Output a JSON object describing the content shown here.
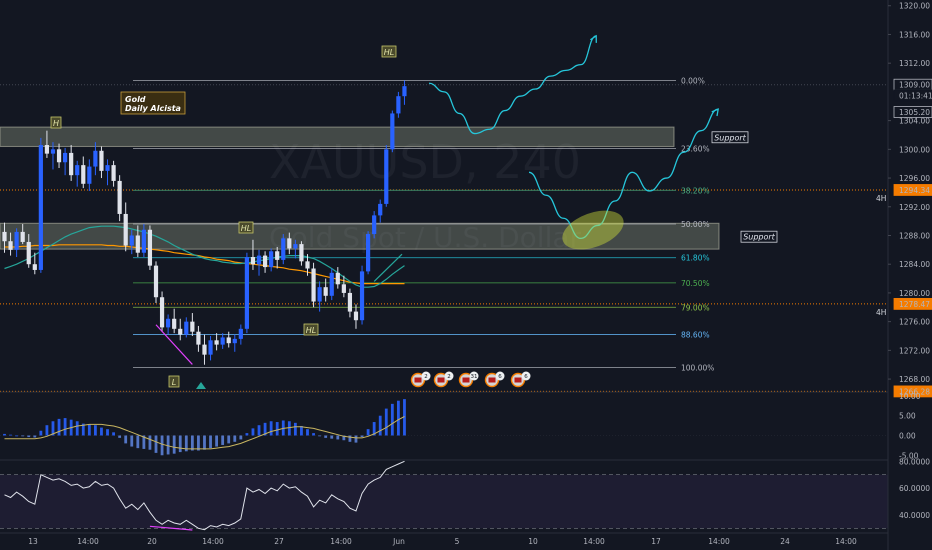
{
  "chart_data": {
    "type": "candlestick",
    "watermark": {
      "symbol": "XAUUSD, 240",
      "description": "Gold Spot / U.S. Dollar"
    },
    "price_axis": {
      "ticks": [
        "1320.00",
        "1316.00",
        "1312.00",
        "1304.00",
        "1300.00",
        "1296.00",
        "1292.00",
        "1288.00",
        "1284.00",
        "1280.00",
        "1276.00",
        "1272.00",
        "1268.00"
      ],
      "tick_values": [
        1320,
        1316,
        1312,
        1304,
        1300,
        1296,
        1292,
        1288,
        1284,
        1280,
        1276,
        1272,
        1268
      ],
      "ylim": [
        1266.2,
        1320.8
      ]
    },
    "price_tags": [
      {
        "text": "1309.00",
        "value": 1309.0,
        "color": "#ffffff",
        "bg": "#131722",
        "border": "#b2b5be"
      },
      {
        "text": "01:13:41",
        "value": 1307.5,
        "color": "#d1d4dc",
        "bg": "#131722",
        "border": "#131722"
      },
      {
        "text": "1305.20",
        "value": 1305.2,
        "color": "#ffffff",
        "bg": "#131722",
        "border": "#b2b5be"
      },
      {
        "text": "1294.34",
        "value": 1294.34,
        "color": "#131722",
        "bg": "#f57c00",
        "border": "#f57c00"
      },
      {
        "text": "1278.47",
        "value": 1278.47,
        "color": "#131722",
        "bg": "#f57c00",
        "border": "#f57c00"
      },
      {
        "text": "1266.28",
        "value": 1266.28,
        "color": "#131722",
        "bg": "#f57c00",
        "border": "#f57c00"
      }
    ],
    "timeframe_labels": [
      {
        "text": "4H",
        "value": 1294.34
      },
      {
        "text": "4H",
        "value": 1278.47
      }
    ],
    "time_axis": [
      "13",
      "14:00",
      "20",
      "14:00",
      "27",
      "14:00",
      "Jun",
      "5",
      "10",
      "14:00",
      "17",
      "14:00",
      "24",
      "14:00"
    ],
    "fib_levels": [
      {
        "label": "0.00%",
        "value": 1309.6,
        "color": "#b2b5be"
      },
      {
        "label": "23.60%",
        "value": 1300.1,
        "color": "#b2b5be"
      },
      {
        "label": "38.20%",
        "value": 1294.3,
        "color": "#4caf80"
      },
      {
        "label": "50.00%",
        "value": 1289.6,
        "color": "#b2b5be"
      },
      {
        "label": "61.80%",
        "value": 1284.9,
        "color": "#26c6da"
      },
      {
        "label": "70.50%",
        "value": 1281.4,
        "color": "#4caf50"
      },
      {
        "label": "79.00%",
        "value": 1278.0,
        "color": "#8bc34a"
      },
      {
        "label": "88.60%",
        "value": 1274.2,
        "color": "#64b5f6"
      },
      {
        "label": "100.00%",
        "value": 1269.6,
        "color": "#b2b5be"
      }
    ],
    "support_zones": [
      {
        "label": "Support",
        "top": 1303.1,
        "bottom": 1300.4
      },
      {
        "label": "Support",
        "top": 1289.7,
        "bottom": 1286.1
      }
    ],
    "annotations": [
      {
        "text": "HL",
        "type": "box"
      },
      {
        "text": "H",
        "type": "box"
      },
      {
        "text": "HL",
        "type": "box"
      },
      {
        "text": "HL",
        "type": "box"
      },
      {
        "text": "L",
        "type": "box"
      }
    ],
    "title_box": {
      "line1": "Gold",
      "line2": "Daily Alcista"
    },
    "event_badges": [
      "2",
      "2",
      "31",
      "6",
      "6"
    ],
    "macd": {
      "ticks": [
        "10.00",
        "5.00",
        "0.00",
        "-5.00"
      ],
      "tick_values": [
        10,
        5,
        0,
        -5
      ],
      "ylim": [
        -6.2,
        11.0
      ]
    },
    "rsi": {
      "ticks": [
        "80.0000",
        "60.0000",
        "40.0000"
      ],
      "tick_values": [
        80,
        60,
        40
      ],
      "ylim": [
        26.5,
        81.0
      ],
      "bands": [
        70,
        30
      ]
    },
    "ohlc": [
      [
        1288.5,
        1289.8,
        1285.6,
        1287.2
      ],
      [
        1287.2,
        1288.4,
        1285.2,
        1286.0
      ],
      [
        1286.0,
        1289.0,
        1285.0,
        1288.5
      ],
      [
        1288.5,
        1289.6,
        1286.8,
        1287.1
      ],
      [
        1287.1,
        1288.2,
        1283.5,
        1284.0
      ],
      [
        1284.0,
        1285.6,
        1282.6,
        1283.2
      ],
      [
        1283.2,
        1301.6,
        1282.8,
        1300.6
      ],
      [
        1300.6,
        1302.6,
        1298.8,
        1299.4
      ],
      [
        1299.4,
        1301.0,
        1297.2,
        1300.0
      ],
      [
        1300.0,
        1300.8,
        1297.4,
        1298.2
      ],
      [
        1298.2,
        1300.2,
        1296.4,
        1299.5
      ],
      [
        1299.5,
        1300.6,
        1295.6,
        1296.4
      ],
      [
        1296.4,
        1298.4,
        1294.8,
        1297.8
      ],
      [
        1297.8,
        1299.0,
        1294.6,
        1295.2
      ],
      [
        1295.2,
        1298.6,
        1294.2,
        1297.6
      ],
      [
        1297.6,
        1301.0,
        1296.4,
        1299.8
      ],
      [
        1299.8,
        1300.4,
        1296.0,
        1297.0
      ],
      [
        1297.0,
        1298.6,
        1295.0,
        1297.8
      ],
      [
        1297.8,
        1298.4,
        1294.8,
        1295.6
      ],
      [
        1295.6,
        1296.4,
        1290.0,
        1291.0
      ],
      [
        1291.0,
        1292.6,
        1285.8,
        1286.6
      ],
      [
        1286.6,
        1288.8,
        1285.4,
        1288.0
      ],
      [
        1288.0,
        1289.4,
        1285.0,
        1285.6
      ],
      [
        1285.6,
        1289.6,
        1285.0,
        1288.8
      ],
      [
        1288.8,
        1289.4,
        1283.2,
        1283.8
      ],
      [
        1283.8,
        1284.4,
        1278.6,
        1279.4
      ],
      [
        1279.4,
        1280.2,
        1274.6,
        1275.2
      ],
      [
        1275.2,
        1277.0,
        1274.2,
        1276.4
      ],
      [
        1276.4,
        1277.8,
        1274.4,
        1275.0
      ],
      [
        1275.0,
        1276.4,
        1273.4,
        1274.2
      ],
      [
        1274.2,
        1276.6,
        1273.8,
        1276.0
      ],
      [
        1276.0,
        1277.2,
        1274.0,
        1274.6
      ],
      [
        1274.6,
        1275.4,
        1271.8,
        1272.8
      ],
      [
        1272.8,
        1274.2,
        1270.0,
        1271.4
      ],
      [
        1271.4,
        1274.0,
        1270.6,
        1273.4
      ],
      [
        1273.4,
        1274.4,
        1272.0,
        1272.8
      ],
      [
        1272.8,
        1274.4,
        1272.2,
        1273.8
      ],
      [
        1273.8,
        1274.6,
        1272.4,
        1273.0
      ],
      [
        1273.0,
        1274.2,
        1271.8,
        1273.6
      ],
      [
        1273.6,
        1275.6,
        1272.8,
        1275.0
      ],
      [
        1275.0,
        1285.6,
        1274.4,
        1285.0
      ],
      [
        1285.0,
        1287.4,
        1283.2,
        1284.0
      ],
      [
        1284.0,
        1286.0,
        1282.4,
        1285.2
      ],
      [
        1285.2,
        1285.8,
        1282.8,
        1283.6
      ],
      [
        1283.6,
        1286.2,
        1283.0,
        1285.8
      ],
      [
        1285.8,
        1286.4,
        1283.4,
        1284.6
      ],
      [
        1284.6,
        1288.2,
        1284.0,
        1287.6
      ],
      [
        1287.6,
        1288.4,
        1285.4,
        1286.2
      ],
      [
        1286.2,
        1287.4,
        1284.8,
        1286.8
      ],
      [
        1286.8,
        1287.2,
        1283.8,
        1284.4
      ],
      [
        1284.4,
        1285.4,
        1282.4,
        1283.4
      ],
      [
        1283.4,
        1284.2,
        1278.0,
        1278.8
      ],
      [
        1278.8,
        1281.6,
        1277.4,
        1280.8
      ],
      [
        1280.8,
        1282.0,
        1278.8,
        1279.6
      ],
      [
        1279.6,
        1283.4,
        1279.0,
        1282.8
      ],
      [
        1282.8,
        1283.6,
        1280.6,
        1281.2
      ],
      [
        1281.2,
        1282.4,
        1279.4,
        1280.0
      ],
      [
        1280.0,
        1280.6,
        1276.6,
        1277.4
      ],
      [
        1277.4,
        1278.4,
        1275.0,
        1276.2
      ],
      [
        1276.2,
        1283.8,
        1275.6,
        1283.0
      ],
      [
        1283.0,
        1288.6,
        1282.6,
        1288.2
      ],
      [
        1288.2,
        1291.4,
        1287.6,
        1290.8
      ],
      [
        1290.8,
        1293.0,
        1289.8,
        1292.4
      ],
      [
        1292.4,
        1300.6,
        1292.0,
        1300.0
      ],
      [
        1300.0,
        1305.4,
        1299.6,
        1305.0
      ],
      [
        1305.0,
        1308.0,
        1304.4,
        1307.4
      ],
      [
        1307.4,
        1309.6,
        1306.2,
        1308.8
      ]
    ],
    "ma_teal": [
      1283.4,
      1283.7,
      1284.0,
      1284.4,
      1284.8,
      1285.3,
      1285.8,
      1286.3,
      1286.8,
      1287.3,
      1287.8,
      1288.2,
      1288.5,
      1288.8,
      1289.1,
      1289.2,
      1289.3,
      1289.3,
      1289.3,
      1289.2,
      1289.1,
      1288.9,
      1288.7,
      1288.5,
      1288.2,
      1287.9,
      1287.5,
      1287.1,
      1286.6,
      1286.2,
      1285.8,
      1285.4,
      1285.1,
      1284.8,
      1284.6,
      1284.5,
      1284.3,
      1284.2,
      1284.1,
      1284.1,
      1284.2,
      1284.3,
      1284.5,
      1284.6,
      1284.8,
      1285.0,
      1285.1,
      1285.2,
      1285.2,
      1285.2,
      1285.0,
      1284.8,
      1284.4,
      1283.9,
      1283.4,
      1282.8,
      1282.2,
      1281.6,
      1281.1,
      1280.8,
      1280.8,
      1280.9,
      1281.3,
      1281.9,
      1282.6,
      1283.2,
      1283.8
    ],
    "ma_orange": [
      1286.4,
      1286.4,
      1286.4,
      1286.5,
      1286.5,
      1286.6,
      1286.6,
      1286.6,
      1286.6,
      1286.7,
      1286.7,
      1286.7,
      1286.7,
      1286.7,
      1286.7,
      1286.7,
      1286.7,
      1286.6,
      1286.6,
      1286.5,
      1286.5,
      1286.4,
      1286.3,
      1286.2,
      1286.1,
      1286.0,
      1285.9,
      1285.8,
      1285.6,
      1285.5,
      1285.4,
      1285.3,
      1285.2,
      1285.0,
      1284.9,
      1284.7,
      1284.6,
      1284.5,
      1284.3,
      1284.2,
      1284.1,
      1284.0,
      1283.9,
      1283.8,
      1283.7,
      1283.6,
      1283.5,
      1283.3,
      1283.2,
      1283.1,
      1282.9,
      1282.7,
      1282.5,
      1282.3,
      1282.1,
      1281.9,
      1281.7,
      1281.5,
      1281.4,
      1281.3,
      1281.3,
      1281.3,
      1281.3,
      1281.3,
      1281.3,
      1281.3,
      1281.3
    ],
    "macd_hist": [
      0.4,
      0.2,
      0.0,
      -0.2,
      -0.4,
      -0.5,
      1.2,
      2.6,
      3.6,
      4.2,
      4.4,
      4.0,
      3.6,
      3.0,
      2.8,
      2.6,
      2.0,
      1.6,
      0.8,
      -0.6,
      -2.0,
      -2.8,
      -3.2,
      -3.4,
      -3.6,
      -4.4,
      -5.0,
      -4.8,
      -4.6,
      -4.2,
      -4.0,
      -3.8,
      -3.8,
      -3.6,
      -3.2,
      -2.8,
      -2.4,
      -2.0,
      -1.6,
      -1.0,
      0.6,
      1.8,
      2.6,
      3.2,
      3.6,
      3.4,
      3.8,
      3.6,
      3.2,
      2.4,
      1.6,
      0.6,
      -0.2,
      -0.6,
      -0.8,
      -1.0,
      -1.2,
      -1.6,
      -1.8,
      -0.4,
      1.6,
      3.4,
      5.0,
      6.8,
      8.0,
      8.8,
      9.2
    ],
    "macd_signal": [
      -0.8,
      -0.8,
      -0.8,
      -0.8,
      -0.8,
      -0.8,
      -0.6,
      -0.2,
      0.4,
      1.0,
      1.6,
      2.0,
      2.4,
      2.6,
      2.8,
      2.8,
      2.8,
      2.6,
      2.4,
      2.0,
      1.4,
      0.8,
      0.2,
      -0.4,
      -1.0,
      -1.6,
      -2.2,
      -2.6,
      -3.0,
      -3.2,
      -3.4,
      -3.4,
      -3.4,
      -3.4,
      -3.4,
      -3.2,
      -3.0,
      -2.8,
      -2.4,
      -2.0,
      -1.4,
      -0.8,
      -0.2,
      0.4,
      1.0,
      1.4,
      1.8,
      2.0,
      2.2,
      2.2,
      2.0,
      1.8,
      1.4,
      1.0,
      0.6,
      0.2,
      -0.2,
      -0.4,
      -0.6,
      -0.6,
      -0.2,
      0.4,
      1.2,
      2.0,
      3.0,
      4.0,
      4.8
    ],
    "rsi_values": [
      55,
      53,
      57,
      54,
      50,
      48,
      70,
      68,
      66,
      67,
      65,
      62,
      63,
      60,
      61,
      65,
      62,
      63,
      60,
      52,
      45,
      48,
      44,
      49,
      42,
      36,
      33,
      36,
      34,
      33,
      36,
      33,
      30,
      29,
      32,
      31,
      33,
      32,
      34,
      37,
      60,
      57,
      59,
      56,
      60,
      58,
      63,
      60,
      61,
      57,
      54,
      46,
      51,
      49,
      55,
      52,
      50,
      45,
      43,
      56,
      63,
      66,
      68,
      74,
      76,
      78,
      80
    ],
    "price_divergence": [
      1276.4,
      1270.6
    ],
    "rsi_divergence": [
      33,
      29.5
    ],
    "projection_1": [
      1309.2,
      1308.0,
      1305.0,
      1302.2,
      1302.8,
      1305.4,
      1307.4,
      1308.4,
      1310.2,
      1311.0,
      1311.8,
      1315.8
    ],
    "projection_2": [
      1296.8,
      1293.6,
      1290.4,
      1287.6,
      1289.4,
      1292.8,
      1296.8,
      1294.2,
      1296.0,
      1299.6,
      1302.6,
      1305.6
    ]
  }
}
